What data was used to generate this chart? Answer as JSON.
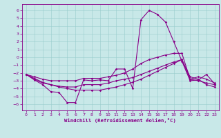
{
  "bg_color": "#c8e8e8",
  "line_color": "#880088",
  "grid_color": "#99cccc",
  "xlabel": "Windchill (Refroidissement éolien,°C)",
  "x_ticks": [
    0,
    1,
    2,
    3,
    4,
    5,
    6,
    7,
    8,
    9,
    10,
    11,
    12,
    13,
    14,
    15,
    16,
    17,
    18,
    19,
    20,
    21,
    22,
    23
  ],
  "y_ticks": [
    -6,
    -5,
    -4,
    -3,
    -2,
    -1,
    0,
    1,
    2,
    3,
    4,
    5,
    6
  ],
  "ylim": [
    -6.8,
    6.8
  ],
  "xlim": [
    -0.5,
    23.5
  ],
  "line1_x": [
    0,
    1,
    2,
    3,
    4,
    5,
    6,
    7,
    8,
    9,
    10,
    11,
    12,
    13,
    14,
    15,
    16,
    17,
    18,
    19,
    20,
    21,
    22,
    23
  ],
  "line1_y": [
    -2.2,
    -2.9,
    -3.5,
    -4.4,
    -4.5,
    -5.8,
    -5.8,
    -2.9,
    -3.0,
    -2.9,
    -3.0,
    -1.5,
    -1.5,
    -4.0,
    4.8,
    6.0,
    5.5,
    4.5,
    2.0,
    -0.5,
    -3.0,
    -2.9,
    -2.2,
    -3.4
  ],
  "line2_x": [
    0,
    1,
    2,
    3,
    4,
    5,
    6,
    7,
    8,
    9,
    10,
    11,
    12,
    13,
    14,
    15,
    16,
    17,
    18,
    19,
    20,
    21,
    22,
    23
  ],
  "line2_y": [
    -2.2,
    -2.5,
    -2.8,
    -3.0,
    -3.0,
    -3.0,
    -3.0,
    -2.7,
    -2.7,
    -2.7,
    -2.5,
    -2.3,
    -2.0,
    -1.5,
    -0.8,
    -0.3,
    0.0,
    0.3,
    0.5,
    0.5,
    -2.8,
    -2.5,
    -2.8,
    -3.3
  ],
  "line3_x": [
    0,
    1,
    2,
    3,
    4,
    5,
    6,
    7,
    8,
    9,
    10,
    11,
    12,
    13,
    14,
    15,
    16,
    17,
    18,
    19,
    20,
    21,
    22,
    23
  ],
  "line3_y": [
    -2.2,
    -2.8,
    -3.3,
    -3.5,
    -3.7,
    -3.8,
    -3.8,
    -3.5,
    -3.5,
    -3.5,
    -3.3,
    -3.0,
    -2.8,
    -2.6,
    -2.2,
    -1.8,
    -1.4,
    -1.0,
    -0.6,
    -0.3,
    -2.8,
    -3.0,
    -3.3,
    -3.5
  ],
  "line4_x": [
    0,
    1,
    2,
    3,
    4,
    5,
    6,
    7,
    8,
    9,
    10,
    11,
    12,
    13,
    14,
    15,
    16,
    17,
    18,
    19,
    20,
    21,
    22,
    23
  ],
  "line4_y": [
    -2.2,
    -2.7,
    -3.2,
    -3.5,
    -3.8,
    -4.0,
    -4.2,
    -4.2,
    -4.2,
    -4.2,
    -4.0,
    -3.8,
    -3.5,
    -3.2,
    -2.8,
    -2.3,
    -1.8,
    -1.3,
    -0.8,
    -0.3,
    -2.5,
    -2.8,
    -3.5,
    -3.8
  ]
}
